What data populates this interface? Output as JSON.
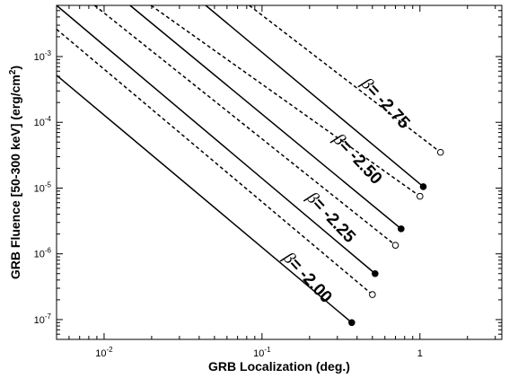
{
  "chart_data": {
    "type": "line",
    "xlabel": "GRB Localization (deg.)",
    "ylabel_main": "GRB Fluence [50-300 keV] (erg/cm",
    "ylabel_sup": "2",
    "ylabel_end": ")",
    "xscale": "log",
    "yscale": "log",
    "xlim": [
      0.005,
      3.3
    ],
    "ylim": [
      5e-08,
      0.006
    ],
    "grid": false,
    "x_ticks": [
      {
        "value": 0.01,
        "mant": "10",
        "exp": "-2"
      },
      {
        "value": 0.1,
        "mant": "10",
        "exp": "-1"
      },
      {
        "value": 1,
        "mant": "1",
        "exp": ""
      }
    ],
    "y_ticks": [
      {
        "value": 1e-07,
        "mant": "10",
        "exp": "-7"
      },
      {
        "value": 1e-06,
        "mant": "10",
        "exp": "-6"
      },
      {
        "value": 1e-05,
        "mant": "10",
        "exp": "-5"
      },
      {
        "value": 0.0001,
        "mant": "10",
        "exp": "-4"
      },
      {
        "value": 0.001,
        "mant": "10",
        "exp": "-3"
      }
    ],
    "series": [
      {
        "style": "solid",
        "end_marker": "filled",
        "points": [
          [
            0.005,
            0.00052
          ],
          [
            0.37,
            9e-08
          ]
        ]
      },
      {
        "style": "dashed",
        "end_marker": "open",
        "points": [
          [
            0.005,
            0.0026
          ],
          [
            0.5,
            2.4e-07
          ]
        ]
      },
      {
        "style": "solid",
        "end_marker": "filled",
        "points": [
          [
            0.005,
            0.006
          ],
          [
            0.52,
            5e-07
          ]
        ]
      },
      {
        "style": "dashed",
        "end_marker": "open",
        "points": [
          [
            0.0087,
            0.006
          ],
          [
            0.7,
            1.35e-06
          ]
        ]
      },
      {
        "style": "solid",
        "end_marker": "filled",
        "points": [
          [
            0.0146,
            0.006
          ],
          [
            0.76,
            2.4e-06
          ]
        ]
      },
      {
        "style": "dashed",
        "end_marker": "open",
        "points": [
          [
            0.0198,
            0.006
          ],
          [
            1.0,
            7.5e-06
          ]
        ]
      },
      {
        "style": "solid",
        "end_marker": "filled",
        "points": [
          [
            0.044,
            0.006
          ],
          [
            1.05,
            1.05e-05
          ]
        ]
      },
      {
        "style": "dashed",
        "end_marker": "open",
        "points": [
          [
            0.083,
            0.006
          ],
          [
            1.35,
            3.5e-05
          ]
        ]
      }
    ],
    "annotations": [
      {
        "symbol": "β",
        "text": "= -2.00",
        "x": 0.135,
        "y": 8.5e-07,
        "angle": 47
      },
      {
        "symbol": "β",
        "text": "= -2.25",
        "x": 0.19,
        "y": 7e-06,
        "angle": 47
      },
      {
        "symbol": "β",
        "text": "= -2.50",
        "x": 0.28,
        "y": 5.4e-05,
        "angle": 47
      },
      {
        "symbol": "β",
        "text": "= -2.75",
        "x": 0.42,
        "y": 0.00038,
        "angle": 47
      }
    ]
  }
}
